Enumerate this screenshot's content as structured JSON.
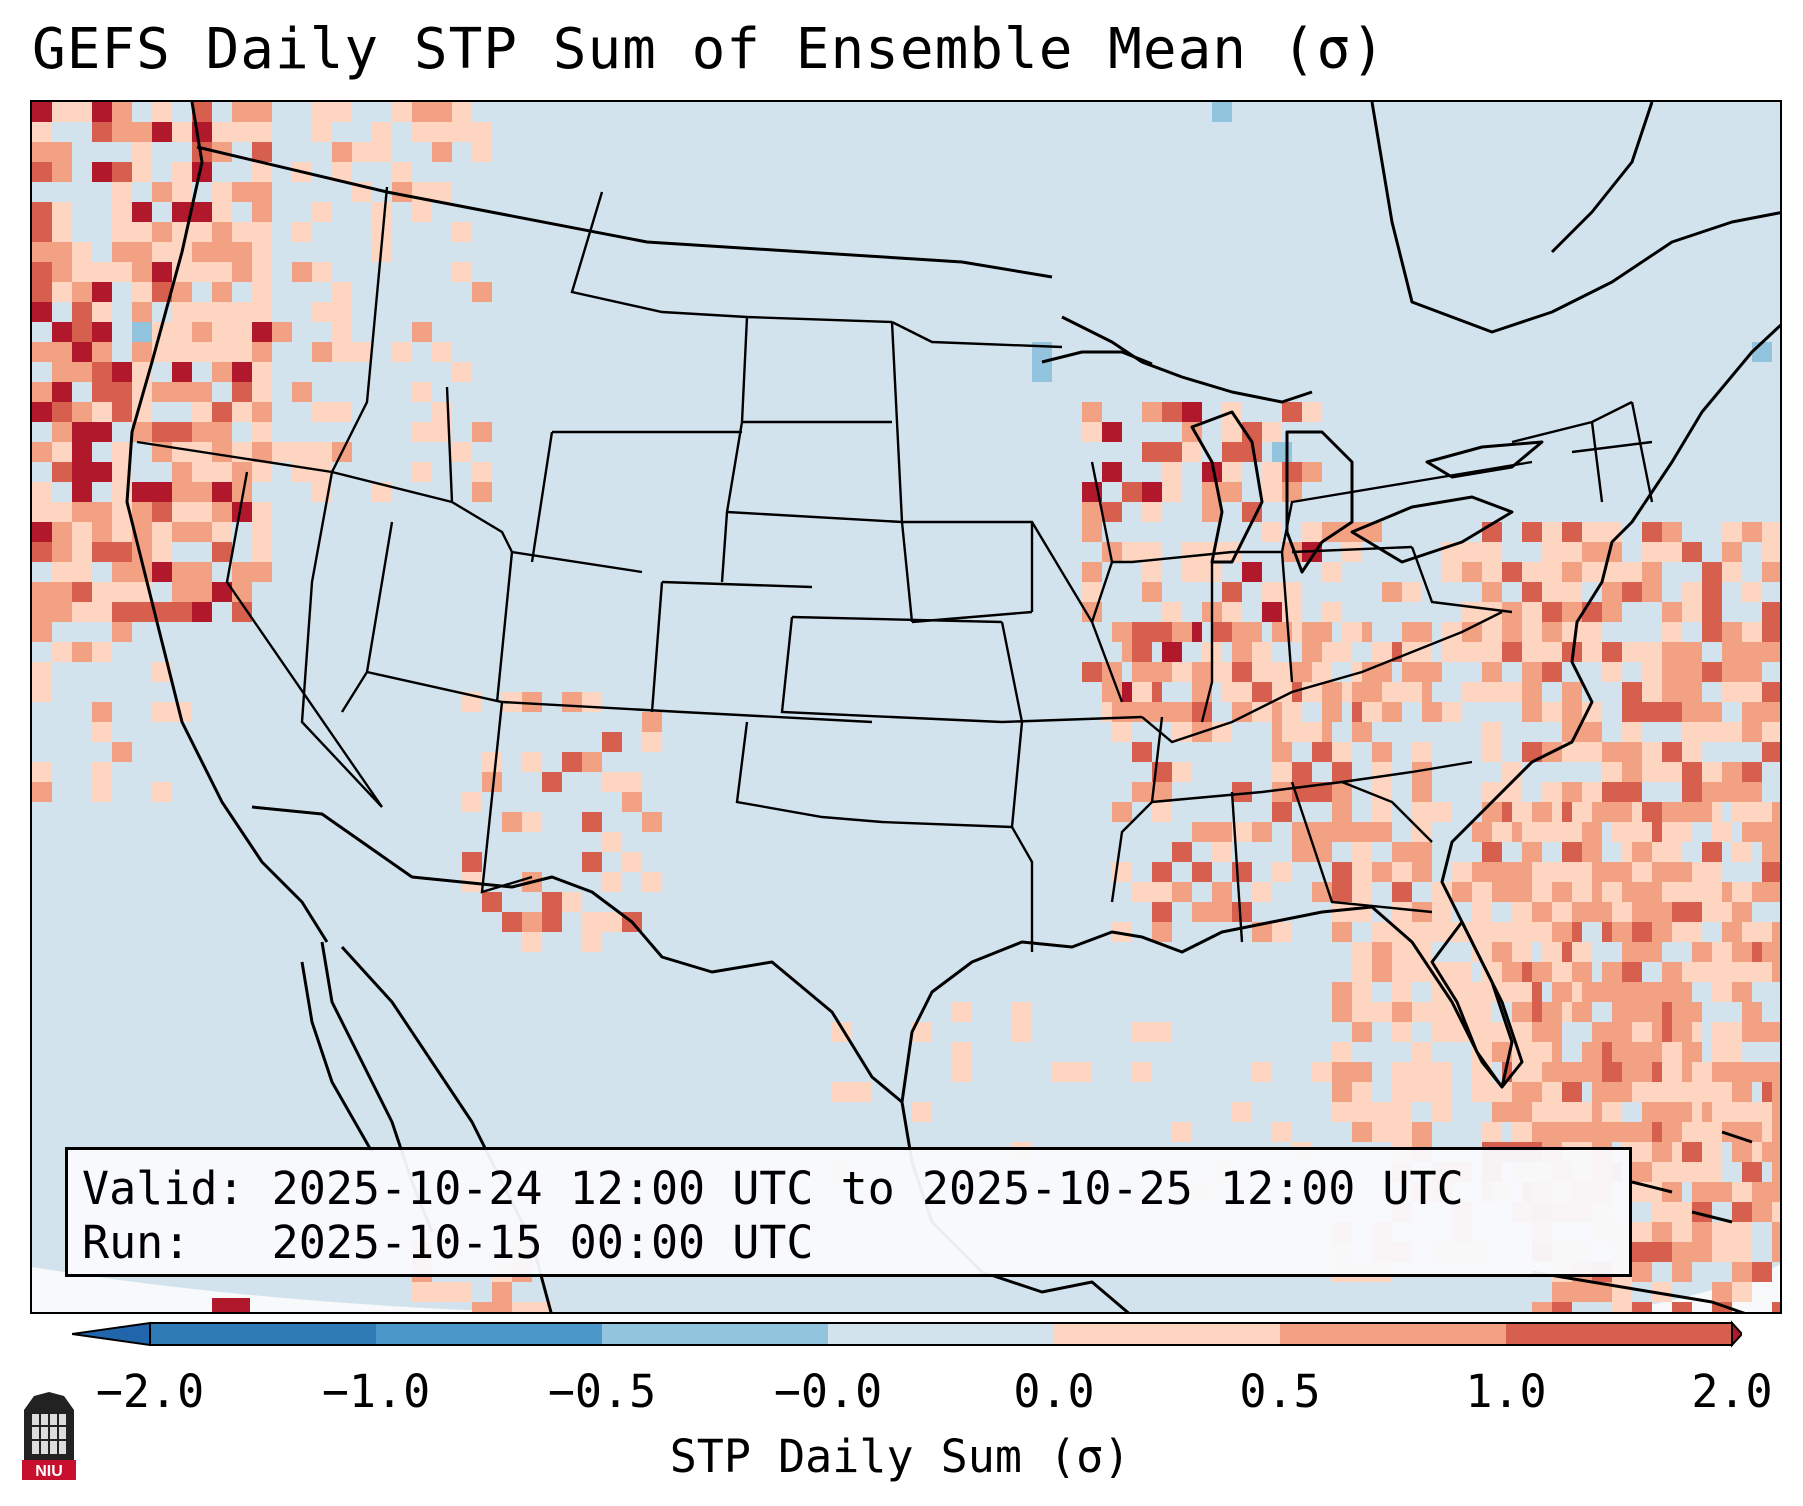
{
  "title": "GEFS Daily STP Sum of Ensemble Mean (σ)",
  "info": {
    "valid_line": "Valid: 2025-10-24 12:00 UTC to 2025-10-25 12:00 UTC",
    "run_line": "Run:   2025-10-15 00:00 UTC"
  },
  "colorbar": {
    "label": "STP Daily Sum (σ)",
    "ticks": [
      "−2.0",
      "−1.0",
      "−0.5",
      "−0.0",
      "0.0",
      "0.5",
      "1.0",
      "2.0"
    ],
    "colors": [
      "#2f7bb6",
      "#4b97c9",
      "#93c4de",
      "#d3e3ee",
      "#fdd5c0",
      "#f2a283",
      "#d65f4d",
      "#b2182b"
    ],
    "extend_low_color": "#2166ac",
    "extend_high_color": "#b2182b"
  },
  "logo": {
    "text": "NIU",
    "color": "#c8102e"
  },
  "map": {
    "background_color": "#d3e3ee",
    "ocean_outside_color": "#f3f6fa"
  }
}
